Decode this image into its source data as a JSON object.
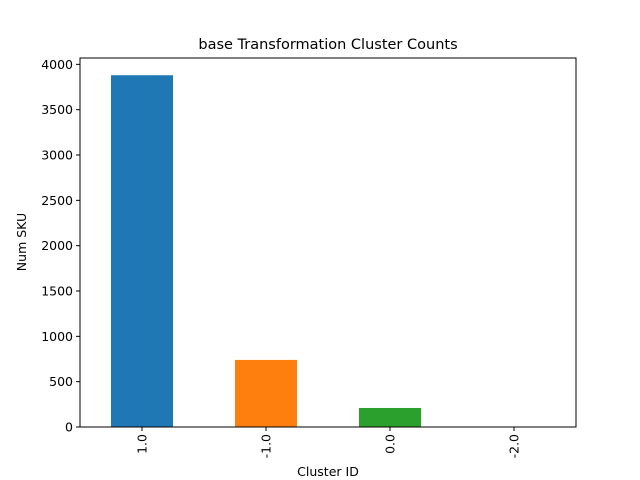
{
  "chart_data": {
    "type": "bar",
    "title": "base  Transformation Cluster Counts",
    "xlabel": "Cluster ID",
    "ylabel": "Num SKU",
    "categories": [
      "1.0",
      "-1.0",
      "0.0",
      "-2.0"
    ],
    "values": [
      3880,
      740,
      210,
      3
    ],
    "ylim": [
      0,
      4070
    ],
    "yticks": [
      0,
      500,
      1000,
      1500,
      2000,
      2500,
      3000,
      3500,
      4000
    ],
    "bar_colors": [
      "#1f77b4",
      "#ff7f0e",
      "#2ca02c",
      "#d62728"
    ],
    "grid": false,
    "legend": "none",
    "xtick_rotation": 90
  }
}
